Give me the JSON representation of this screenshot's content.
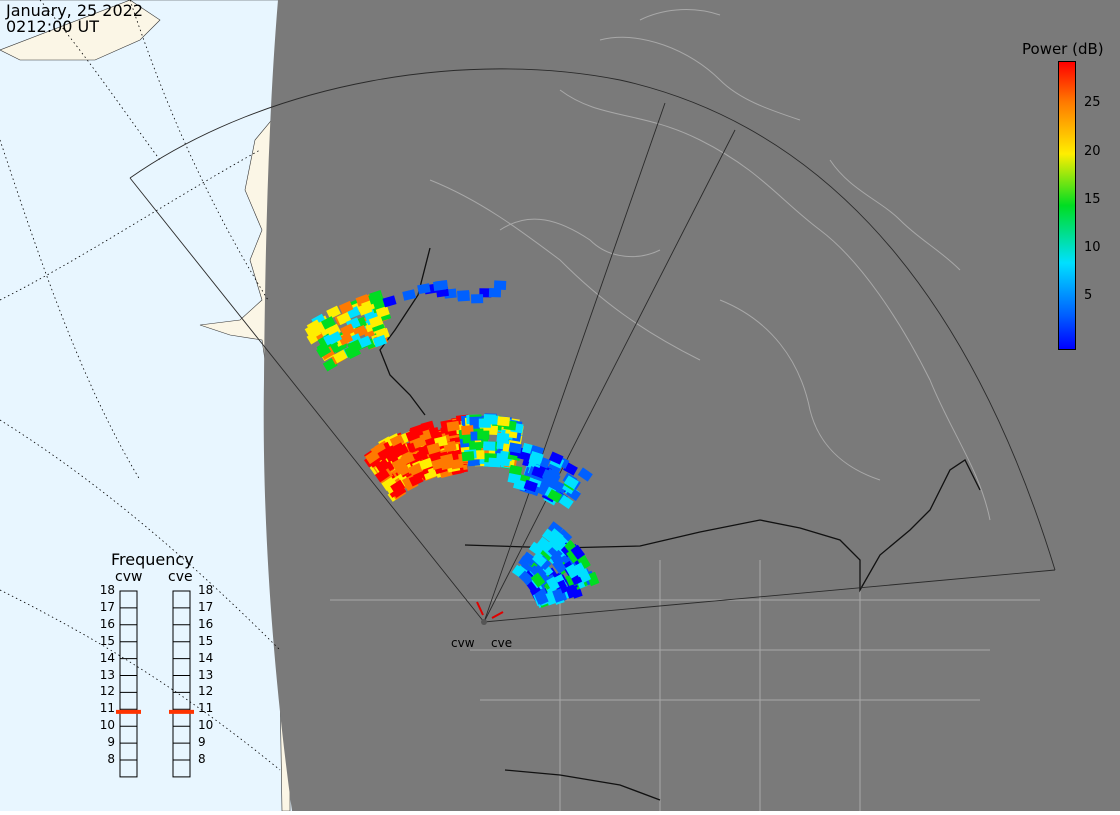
{
  "timestamp": {
    "date": "January, 25 2022",
    "time": "0212:00 UT"
  },
  "colorbar": {
    "title": "Power (dB)",
    "ticks": [
      "25",
      "20",
      "15",
      "10",
      "5"
    ],
    "range": [
      0,
      30
    ],
    "colors": [
      "#0000ff",
      "#0060ff",
      "#00e0ff",
      "#00dd22",
      "#ffee00",
      "#ff7a00",
      "#ff0000"
    ]
  },
  "frequency_panel": {
    "title": "Frequency",
    "radars": [
      {
        "name": "cvw",
        "frequency": 11
      },
      {
        "name": "cve",
        "frequency": 11
      }
    ],
    "scale": [
      "18",
      "17",
      "16",
      "15",
      "14",
      "13",
      "12",
      "11",
      "10",
      "9",
      "8"
    ],
    "marker_color": "#ff3300"
  },
  "radar_sites": [
    {
      "name": "cvw"
    },
    {
      "name": "cve"
    }
  ],
  "map_colors": {
    "night": "#7a7a7a",
    "ocean_day": "#e8f6ff",
    "land_day": "#fbf6e6",
    "borders": "#a8a8a8"
  }
}
